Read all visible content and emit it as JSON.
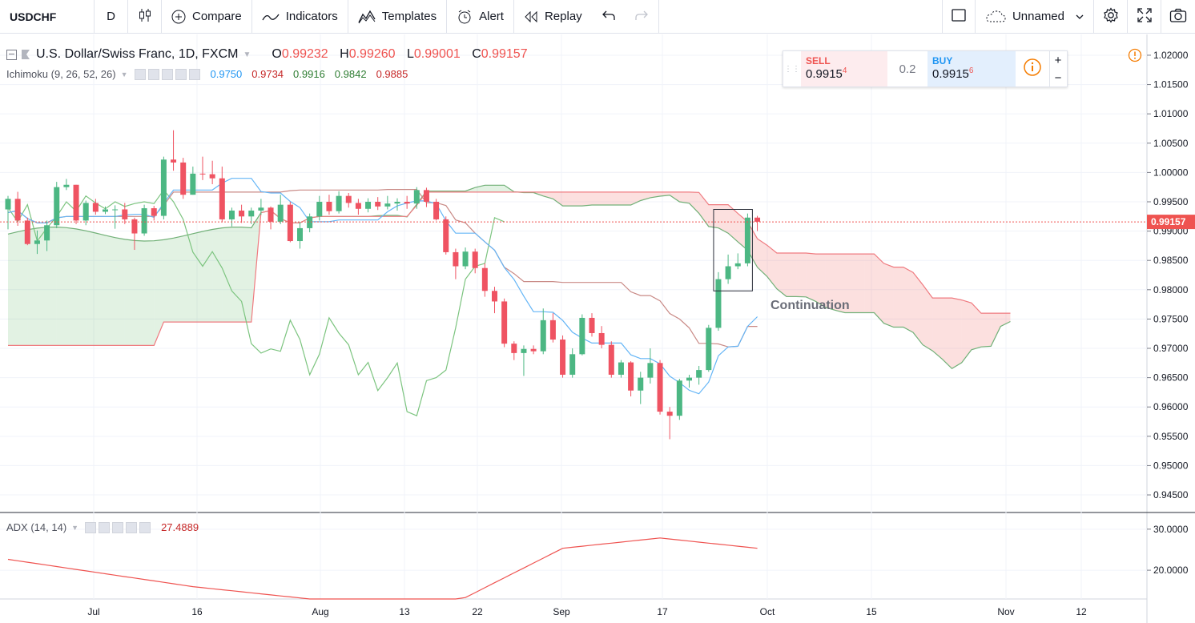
{
  "toolbar": {
    "symbol": "USDCHF",
    "interval": "D",
    "compare": "Compare",
    "indicators": "Indicators",
    "templates": "Templates",
    "alert": "Alert",
    "replay": "Replay",
    "layout_name": "Unnamed"
  },
  "legend": {
    "title": "U.S. Dollar/Swiss Franc, 1D, FXCM",
    "o_label": "O",
    "o": "0.99232",
    "h_label": "H",
    "h": "0.99260",
    "l_label": "L",
    "l": "0.99001",
    "c_label": "C",
    "c": "0.99157"
  },
  "ichimoku": {
    "name": "Ichimoku (9, 26, 52, 26)",
    "values": [
      {
        "v": "0.9750",
        "color": "#2196f3"
      },
      {
        "v": "0.9734",
        "color": "#c62828"
      },
      {
        "v": "0.9916",
        "color": "#2e7d32"
      },
      {
        "v": "0.9842",
        "color": "#2e7d32"
      },
      {
        "v": "0.9885",
        "color": "#c62828"
      }
    ]
  },
  "adx": {
    "name": "ADX (14, 14)",
    "value": "27.4889"
  },
  "trade": {
    "sell_label": "SELL",
    "sell_price": "0.9915",
    "sell_sup": "4",
    "spread": "0.2",
    "buy_label": "BUY",
    "buy_price": "0.9915",
    "buy_sup": "6",
    "plus": "+",
    "minus": "−"
  },
  "annotation": "Continuation",
  "price_axis": [
    "1.02000",
    "1.01500",
    "1.01000",
    "1.00500",
    "1.00000",
    "0.99500",
    "0.99000",
    "0.98500",
    "0.98000",
    "0.97500",
    "0.97000",
    "0.96500",
    "0.96000",
    "0.95500",
    "0.95000",
    "0.94500"
  ],
  "current_price": "0.99157",
  "adx_axis": [
    "30.0000",
    "20.0000"
  ],
  "time_axis": [
    "Jul",
    "16",
    "Aug",
    "13",
    "22",
    "Sep",
    "17",
    "Oct",
    "15",
    "Nov",
    "12"
  ],
  "colors": {
    "up": "#26a69a",
    "down": "#ef5350",
    "candle_up": "#4cb783",
    "candle_down": "#ef5362",
    "tenkan": "#64b5f6",
    "kijun": "#c98a86",
    "lagging": "#7cc47f",
    "span_a": "#71b077",
    "span_b": "#ef7b80"
  },
  "chart_data": {
    "type": "candlestick",
    "symbol": "USDCHF",
    "interval": "1D",
    "ylim": [
      0.942,
      1.023
    ],
    "candles": [
      {
        "o": 0.9937,
        "h": 0.996,
        "l": 0.9903,
        "c": 0.9955
      },
      {
        "o": 0.9955,
        "h": 0.9967,
        "l": 0.9909,
        "c": 0.9918
      },
      {
        "o": 0.9918,
        "h": 0.9923,
        "l": 0.9876,
        "c": 0.9878
      },
      {
        "o": 0.9878,
        "h": 0.9901,
        "l": 0.9861,
        "c": 0.9884
      },
      {
        "o": 0.9884,
        "h": 0.9918,
        "l": 0.9866,
        "c": 0.991
      },
      {
        "o": 0.991,
        "h": 0.9984,
        "l": 0.9905,
        "c": 0.9975
      },
      {
        "o": 0.9975,
        "h": 0.9989,
        "l": 0.997,
        "c": 0.9979
      },
      {
        "o": 0.9979,
        "h": 0.9979,
        "l": 0.9912,
        "c": 0.9918
      },
      {
        "o": 0.9918,
        "h": 0.9952,
        "l": 0.991,
        "c": 0.9948
      },
      {
        "o": 0.9948,
        "h": 0.9955,
        "l": 0.9928,
        "c": 0.9933
      },
      {
        "o": 0.9933,
        "h": 0.9942,
        "l": 0.9929,
        "c": 0.9937
      },
      {
        "o": 0.9937,
        "h": 0.9944,
        "l": 0.9904,
        "c": 0.9937
      },
      {
        "o": 0.9937,
        "h": 0.9948,
        "l": 0.9912,
        "c": 0.992
      },
      {
        "o": 0.992,
        "h": 0.9923,
        "l": 0.9868,
        "c": 0.9896
      },
      {
        "o": 0.9896,
        "h": 0.9945,
        "l": 0.9892,
        "c": 0.9939
      },
      {
        "o": 0.9939,
        "h": 0.9943,
        "l": 0.9918,
        "c": 0.9926
      },
      {
        "o": 0.9926,
        "h": 1.0027,
        "l": 0.992,
        "c": 1.0022
      },
      {
        "o": 1.0022,
        "h": 1.0072,
        "l": 1.0003,
        "c": 1.0017
      },
      {
        "o": 1.0017,
        "h": 1.0025,
        "l": 0.9955,
        "c": 0.9962
      },
      {
        "o": 0.9962,
        "h": 1.001,
        "l": 0.9962,
        "c": 0.9998
      },
      {
        "o": 0.9998,
        "h": 1.0027,
        "l": 0.9987,
        "c": 0.9997
      },
      {
        "o": 0.9997,
        "h": 1.002,
        "l": 0.998,
        "c": 0.999
      },
      {
        "o": 0.999,
        "h": 1.001,
        "l": 0.9915,
        "c": 0.992
      },
      {
        "o": 0.992,
        "h": 0.994,
        "l": 0.9908,
        "c": 0.9935
      },
      {
        "o": 0.9935,
        "h": 0.9945,
        "l": 0.9914,
        "c": 0.9925
      },
      {
        "o": 0.9925,
        "h": 0.994,
        "l": 0.9912,
        "c": 0.9935
      },
      {
        "o": 0.9935,
        "h": 0.9955,
        "l": 0.9928,
        "c": 0.994
      },
      {
        "o": 0.994,
        "h": 0.9942,
        "l": 0.9903,
        "c": 0.9916
      },
      {
        "o": 0.9916,
        "h": 0.9962,
        "l": 0.9912,
        "c": 0.9945
      },
      {
        "o": 0.9945,
        "h": 0.995,
        "l": 0.9881,
        "c": 0.9883
      },
      {
        "o": 0.9883,
        "h": 0.9915,
        "l": 0.987,
        "c": 0.9905
      },
      {
        "o": 0.9905,
        "h": 0.993,
        "l": 0.9898,
        "c": 0.9925
      },
      {
        "o": 0.9925,
        "h": 0.996,
        "l": 0.9918,
        "c": 0.995
      },
      {
        "o": 0.995,
        "h": 0.9962,
        "l": 0.9928,
        "c": 0.9934
      },
      {
        "o": 0.9934,
        "h": 0.9968,
        "l": 0.993,
        "c": 0.996
      },
      {
        "o": 0.996,
        "h": 0.9965,
        "l": 0.994,
        "c": 0.9948
      },
      {
        "o": 0.9948,
        "h": 0.9955,
        "l": 0.9928,
        "c": 0.9938
      },
      {
        "o": 0.9938,
        "h": 0.9956,
        "l": 0.9932,
        "c": 0.995
      },
      {
        "o": 0.995,
        "h": 0.9958,
        "l": 0.9936,
        "c": 0.9942
      },
      {
        "o": 0.9942,
        "h": 0.996,
        "l": 0.9937,
        "c": 0.9947
      },
      {
        "o": 0.9947,
        "h": 0.9956,
        "l": 0.9935,
        "c": 0.995
      },
      {
        "o": 0.995,
        "h": 0.996,
        "l": 0.9938,
        "c": 0.9947
      },
      {
        "o": 0.9947,
        "h": 0.9975,
        "l": 0.9938,
        "c": 0.997
      },
      {
        "o": 0.997,
        "h": 0.9974,
        "l": 0.9941,
        "c": 0.995
      },
      {
        "o": 0.995,
        "h": 0.9955,
        "l": 0.9918,
        "c": 0.992
      },
      {
        "o": 0.992,
        "h": 0.9925,
        "l": 0.986,
        "c": 0.9864
      },
      {
        "o": 0.9864,
        "h": 0.987,
        "l": 0.9818,
        "c": 0.984
      },
      {
        "o": 0.984,
        "h": 0.9872,
        "l": 0.9835,
        "c": 0.9865
      },
      {
        "o": 0.9865,
        "h": 0.987,
        "l": 0.9828,
        "c": 0.9837
      },
      {
        "o": 0.9837,
        "h": 0.9845,
        "l": 0.9788,
        "c": 0.9798
      },
      {
        "o": 0.9798,
        "h": 0.9805,
        "l": 0.976,
        "c": 0.978
      },
      {
        "o": 0.978,
        "h": 0.9785,
        "l": 0.9702,
        "c": 0.9708
      },
      {
        "o": 0.9708,
        "h": 0.9712,
        "l": 0.968,
        "c": 0.9692
      },
      {
        "o": 0.9692,
        "h": 0.9705,
        "l": 0.9653,
        "c": 0.9699
      },
      {
        "o": 0.9699,
        "h": 0.9705,
        "l": 0.969,
        "c": 0.9695
      },
      {
        "o": 0.9695,
        "h": 0.9768,
        "l": 0.969,
        "c": 0.9748
      },
      {
        "o": 0.9748,
        "h": 0.976,
        "l": 0.971,
        "c": 0.9715
      },
      {
        "o": 0.9715,
        "h": 0.9722,
        "l": 0.965,
        "c": 0.9655
      },
      {
        "o": 0.9655,
        "h": 0.97,
        "l": 0.965,
        "c": 0.969
      },
      {
        "o": 0.969,
        "h": 0.9758,
        "l": 0.9688,
        "c": 0.9752
      },
      {
        "o": 0.9752,
        "h": 0.976,
        "l": 0.972,
        "c": 0.9726
      },
      {
        "o": 0.9726,
        "h": 0.9738,
        "l": 0.97,
        "c": 0.9706
      },
      {
        "o": 0.9706,
        "h": 0.9712,
        "l": 0.965,
        "c": 0.9655
      },
      {
        "o": 0.9655,
        "h": 0.968,
        "l": 0.965,
        "c": 0.9676
      },
      {
        "o": 0.9676,
        "h": 0.9678,
        "l": 0.9618,
        "c": 0.9628
      },
      {
        "o": 0.9628,
        "h": 0.966,
        "l": 0.9605,
        "c": 0.965
      },
      {
        "o": 0.965,
        "h": 0.97,
        "l": 0.964,
        "c": 0.9675
      },
      {
        "o": 0.9675,
        "h": 0.968,
        "l": 0.9587,
        "c": 0.9592
      },
      {
        "o": 0.9592,
        "h": 0.96,
        "l": 0.9545,
        "c": 0.9585
      },
      {
        "o": 0.9585,
        "h": 0.9648,
        "l": 0.9578,
        "c": 0.9645
      },
      {
        "o": 0.9645,
        "h": 0.9655,
        "l": 0.9633,
        "c": 0.965
      },
      {
        "o": 0.965,
        "h": 0.967,
        "l": 0.9638,
        "c": 0.9663
      },
      {
        "o": 0.9663,
        "h": 0.974,
        "l": 0.966,
        "c": 0.9735
      },
      {
        "o": 0.9735,
        "h": 0.983,
        "l": 0.973,
        "c": 0.9818
      },
      {
        "o": 0.9818,
        "h": 0.986,
        "l": 0.981,
        "c": 0.984
      },
      {
        "o": 0.984,
        "h": 0.9862,
        "l": 0.9835,
        "c": 0.9845
      },
      {
        "o": 0.9845,
        "h": 0.993,
        "l": 0.984,
        "c": 0.9923
      },
      {
        "o": 0.9923,
        "h": 0.9926,
        "l": 0.99,
        "c": 0.9916
      }
    ],
    "adx": {
      "name": "ADX (14, 14)",
      "ylim": [
        13.0,
        32.5
      ]
    },
    "highlight_label": "Continuation"
  }
}
